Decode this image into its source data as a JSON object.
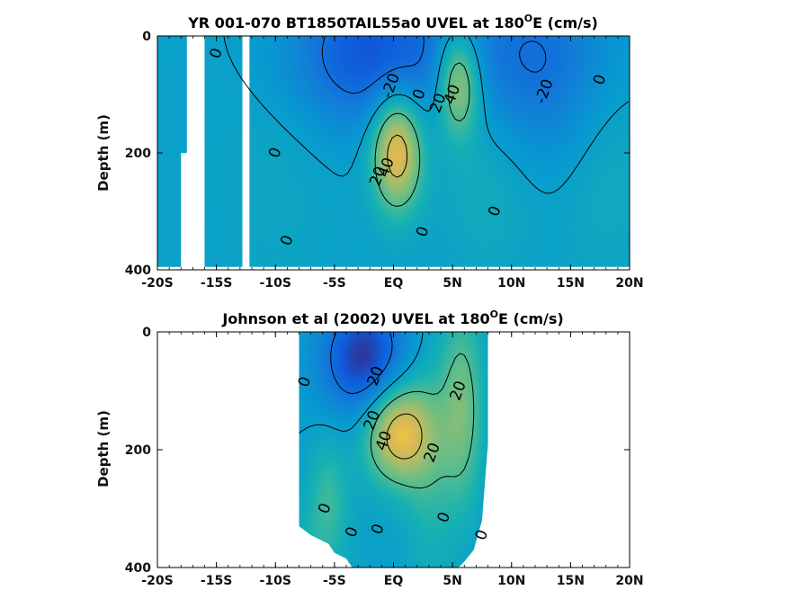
{
  "chart_data": [
    {
      "type": "heatmap",
      "title_main": "YR 001-070 BT1850TAIL55a0 UVEL at 180",
      "title_sup": "O",
      "title_tail": "E (cm/s)",
      "ylabel": "Depth (m)",
      "xlabel": "",
      "xlim": [
        -20,
        20
      ],
      "ylim": [
        0,
        400
      ],
      "y_inverted": true,
      "xtick_values": [
        -20,
        -15,
        -10,
        -5,
        0,
        5,
        10,
        15,
        20
      ],
      "xtick_labels": [
        "-20S",
        "-15S",
        "-10S",
        "-5S",
        "EQ",
        "5N",
        "10N",
        "15N",
        "20N"
      ],
      "ytick_values": [
        0,
        200,
        400
      ],
      "ytick_labels": [
        "0",
        "200",
        "400"
      ],
      "colormap": "parula",
      "color_limits": [
        -40,
        60
      ],
      "contour_interval": 20,
      "data_gaps": [
        {
          "lat_from": -17.5,
          "lat_to": -16.0,
          "depth_from": 0,
          "depth_to": 400
        },
        {
          "lat_from": -18.0,
          "lat_to": -17.4,
          "depth_from": 200,
          "depth_to": 400
        },
        {
          "lat_from": -12.8,
          "lat_to": -12.2,
          "depth_from": 0,
          "depth_to": 400
        }
      ],
      "data_extent": {
        "lat_from": -20,
        "lat_to": 20,
        "depth_from": 0,
        "depth_to": 395
      },
      "features": [
        {
          "name": "westward surface flow",
          "lat": -2,
          "depth": 30,
          "value": -30,
          "lat_width": 5,
          "depth_width": 90
        },
        {
          "name": "westward flow north",
          "lat": 12,
          "depth": 50,
          "value": -22,
          "lat_width": 5,
          "depth_width": 120
        },
        {
          "name": "equatorial undercurrent",
          "lat": 0.3,
          "depth": 195,
          "value": 52,
          "lat_width": 1.5,
          "depth_width": 70
        },
        {
          "name": "north subsurface jet",
          "lat": 5.5,
          "depth": 80,
          "value": 42,
          "lat_width": 1.3,
          "depth_width": 65
        },
        {
          "name": "north flank",
          "lat": 8,
          "depth": 220,
          "value": 10,
          "lat_width": 3,
          "depth_width": 120
        },
        {
          "name": "far north",
          "lat": 18,
          "depth": 200,
          "value": 8,
          "lat_width": 3,
          "depth_width": 150
        },
        {
          "name": "south west",
          "lat": -10,
          "depth": 200,
          "value": 4,
          "lat_width": 4,
          "depth_width": 200
        }
      ],
      "contour_labels": [
        {
          "text": "0",
          "lat": -15,
          "depth": 30
        },
        {
          "text": "0",
          "lat": -10,
          "depth": 200
        },
        {
          "text": "0",
          "lat": -9,
          "depth": 350
        },
        {
          "text": "-20",
          "lat": -0.2,
          "depth": 85
        },
        {
          "text": "0",
          "lat": 2.2,
          "depth": 100
        },
        {
          "text": "20",
          "lat": 3.8,
          "depth": 115
        },
        {
          "text": "40",
          "lat": 5.0,
          "depth": 100
        },
        {
          "text": "40",
          "lat": -0.6,
          "depth": 225
        },
        {
          "text": "20",
          "lat": -1.3,
          "depth": 240
        },
        {
          "text": "0",
          "lat": 2.5,
          "depth": 335
        },
        {
          "text": "0",
          "lat": 8.6,
          "depth": 300
        },
        {
          "text": "-20",
          "lat": 12.8,
          "depth": 95
        },
        {
          "text": "0",
          "lat": 17.5,
          "depth": 75
        }
      ]
    },
    {
      "type": "heatmap",
      "title_main": "Johnson et al (2002) UVEL at 180",
      "title_sup": "O",
      "title_tail": "E (cm/s)",
      "ylabel": "Depth (m)",
      "xlabel": "",
      "xlim": [
        -20,
        20
      ],
      "ylim": [
        0,
        400
      ],
      "y_inverted": true,
      "xtick_values": [
        -20,
        -15,
        -10,
        -5,
        0,
        5,
        10,
        15,
        20
      ],
      "xtick_labels": [
        "-20S",
        "-15S",
        "-10S",
        "-5S",
        "EQ",
        "5N",
        "10N",
        "15N",
        "20N"
      ],
      "ytick_values": [
        0,
        200,
        400
      ],
      "ytick_labels": [
        "0",
        "200",
        "400"
      ],
      "colormap": "parula",
      "color_limits": [
        -40,
        60
      ],
      "contour_interval": 20,
      "data_extent": {
        "lat_from": -8,
        "lat_to": 8,
        "depth_from": 0,
        "depth_to": 400
      },
      "bottom_mask": [
        {
          "lat": -8.0,
          "depth": 330
        },
        {
          "lat": -7.0,
          "depth": 345
        },
        {
          "lat": -5.5,
          "depth": 360
        },
        {
          "lat": -5.0,
          "depth": 375
        },
        {
          "lat": -4.0,
          "depth": 385
        },
        {
          "lat": -3.5,
          "depth": 400
        },
        {
          "lat": 5.5,
          "depth": 400
        },
        {
          "lat": 6.0,
          "depth": 390
        },
        {
          "lat": 6.8,
          "depth": 370
        },
        {
          "lat": 7.5,
          "depth": 320
        },
        {
          "lat": 8.0,
          "depth": 190
        }
      ],
      "features": [
        {
          "name": "westward surface flow",
          "lat": -2.5,
          "depth": 45,
          "value": -38,
          "lat_width": 2.5,
          "depth_width": 70
        },
        {
          "name": "equatorial undercurrent",
          "lat": 0.4,
          "depth": 170,
          "value": 50,
          "lat_width": 2.0,
          "depth_width": 60
        },
        {
          "name": "north jet",
          "lat": 5.8,
          "depth": 130,
          "value": 26,
          "lat_width": 1.3,
          "depth_width": 120
        },
        {
          "name": "south subsurface",
          "lat": -5.5,
          "depth": 270,
          "value": 14,
          "lat_width": 1.2,
          "depth_width": 70
        },
        {
          "name": "east band",
          "lat": 3.0,
          "depth": 240,
          "value": 12,
          "lat_width": 1.5,
          "depth_width": 150
        },
        {
          "name": "deep west",
          "lat": -6.5,
          "depth": 360,
          "value": 8,
          "lat_width": 2,
          "depth_width": 60
        }
      ],
      "contour_labels": [
        {
          "text": "0",
          "lat": -7.5,
          "depth": 85
        },
        {
          "text": "20",
          "lat": -1.5,
          "depth": 75
        },
        {
          "text": "20",
          "lat": 5.5,
          "depth": 100
        },
        {
          "text": "20",
          "lat": -1.8,
          "depth": 150
        },
        {
          "text": "40",
          "lat": -0.8,
          "depth": 185
        },
        {
          "text": "20",
          "lat": 3.3,
          "depth": 205
        },
        {
          "text": "0",
          "lat": -5.8,
          "depth": 300
        },
        {
          "text": "0",
          "lat": -1.3,
          "depth": 335
        },
        {
          "text": "0",
          "lat": -3.5,
          "depth": 340
        },
        {
          "text": "0",
          "lat": 4.3,
          "depth": 315
        },
        {
          "text": "0",
          "lat": 7.5,
          "depth": 345
        }
      ]
    }
  ]
}
